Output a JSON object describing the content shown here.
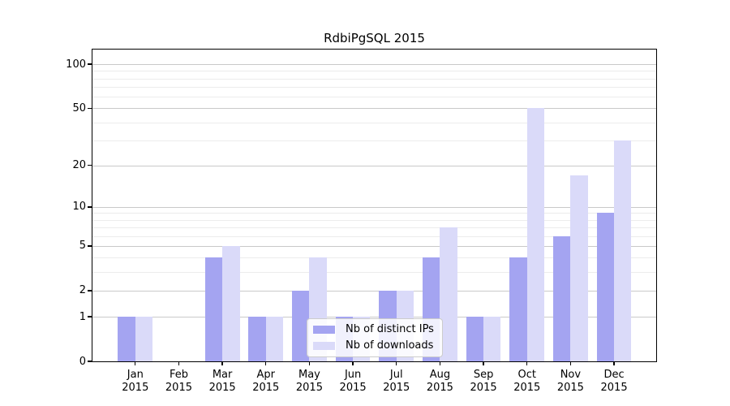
{
  "title": "RdbiPgSQL 2015",
  "colors": {
    "ips_bar": "#a4a4f1",
    "downloads_bar": "#dadaf9",
    "grid_major": "#c9c9c9",
    "grid_minor": "#ececec",
    "axis": "#000000",
    "legend_border": "#cccccc",
    "background": "#ffffff"
  },
  "legend": {
    "items": [
      {
        "label": "Nb of distinct IPs",
        "color_key": "ips_bar"
      },
      {
        "label": "Nb of downloads",
        "color_key": "downloads_bar"
      }
    ]
  },
  "chart_data": {
    "type": "bar",
    "title": "RdbiPgSQL 2015",
    "categories": [
      "Jan 2015",
      "Feb 2015",
      "Mar 2015",
      "Apr 2015",
      "May 2015",
      "Jun 2015",
      "Jul 2015",
      "Aug 2015",
      "Sep 2015",
      "Oct 2015",
      "Nov 2015",
      "Dec 2015"
    ],
    "x_tick_months": [
      "Jan",
      "Feb",
      "Mar",
      "Apr",
      "May",
      "Jun",
      "Jul",
      "Aug",
      "Sep",
      "Oct",
      "Nov",
      "Dec"
    ],
    "x_tick_year": "2015",
    "series": [
      {
        "name": "Nb of distinct IPs",
        "values": [
          1,
          0,
          4,
          1,
          2,
          1,
          2,
          4,
          1,
          4,
          6,
          9
        ]
      },
      {
        "name": "Nb of downloads",
        "values": [
          1,
          0,
          5,
          1,
          4,
          1,
          2,
          7,
          1,
          50,
          17,
          30
        ]
      }
    ],
    "xlabel": "",
    "ylabel": "",
    "y_scale": "log1p",
    "y_ticks": [
      0,
      1,
      2,
      5,
      10,
      20,
      50,
      100
    ],
    "y_minor_gridlines": [
      3,
      4,
      6,
      7,
      8,
      9,
      30,
      40,
      60,
      70,
      80,
      90
    ],
    "ylim": [
      0,
      126
    ],
    "grid": true,
    "legend_position": "lower center"
  }
}
